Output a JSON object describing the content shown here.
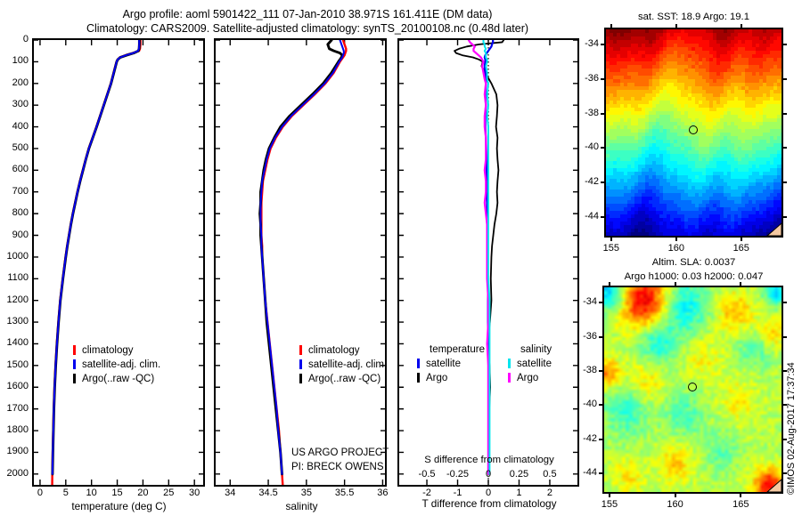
{
  "figure": {
    "title_line1": "Argo profile: aoml 5901422_111 07-Jan-2010 38.971S 161.411E (DM data)",
    "title_line2": "Climatology: CARS2009. Satellite-adjusted climatology: synTS_20100108.nc (0.48d later)",
    "watermark": "©IMOS 02-Aug-2017 17:37:34",
    "colors": {
      "climatology": "#ff0000",
      "satellite": "#0000ee",
      "argo": "#000000",
      "sat_salinity": "#00e5ee",
      "argo_salinity": "#ff00ff",
      "land": "#f5c9a2",
      "axis": "#000000"
    }
  },
  "chart_data": [
    {
      "id": "temperature_profile",
      "type": "line",
      "xlabel": "temperature (deg C)",
      "xlim": [
        -1.2,
        31.7
      ],
      "xticks": [
        0,
        5,
        10,
        15,
        20,
        25,
        30
      ],
      "depth_lim": [
        0,
        2050
      ],
      "depth_ticks": [
        0,
        100,
        200,
        300,
        400,
        500,
        600,
        700,
        800,
        900,
        1000,
        1100,
        1200,
        1300,
        1400,
        1500,
        1600,
        1700,
        1800,
        1900,
        2000
      ],
      "depths": [
        0,
        20,
        40,
        50,
        60,
        70,
        80,
        90,
        100,
        150,
        200,
        250,
        300,
        350,
        400,
        450,
        500,
        550,
        600,
        650,
        700,
        750,
        800,
        850,
        900,
        950,
        1000,
        1100,
        1200,
        1300,
        1400,
        1500,
        1600,
        1700,
        1800,
        1900,
        2000,
        2050
      ],
      "series": [
        {
          "name": "climatology",
          "color": "#ff0000",
          "lw": 2.4,
          "values": [
            19.5,
            19.5,
            19.42,
            19.25,
            18.0,
            16.6,
            15.5,
            15.05,
            14.85,
            14.3,
            13.75,
            13.05,
            12.35,
            11.65,
            10.95,
            10.2,
            9.45,
            8.85,
            8.3,
            7.75,
            7.25,
            6.8,
            6.35,
            5.95,
            5.6,
            5.25,
            4.95,
            4.4,
            3.9,
            3.55,
            3.25,
            3.0,
            2.8,
            2.65,
            2.55,
            2.45,
            2.38,
            2.36
          ]
        },
        {
          "name": "argo",
          "color": "#000000",
          "lw": 2.9,
          "values": [
            19.3,
            19.3,
            19.25,
            19.1,
            18.2,
            16.8,
            15.6,
            15.1,
            14.9,
            14.35,
            13.8,
            13.1,
            12.4,
            11.7,
            11.0,
            10.25,
            9.5,
            8.9,
            8.35,
            7.8,
            7.3,
            6.85,
            6.4,
            6.0,
            5.65,
            5.3,
            5.0,
            4.45,
            3.95,
            3.6,
            3.3,
            3.05,
            2.85,
            2.7,
            2.6,
            2.5,
            2.42
          ]
        },
        {
          "name": "satellite-adjusted",
          "color": "#0000ee",
          "lw": 2.0,
          "values": [
            19.25,
            19.28,
            19.22,
            19.05,
            18.1,
            16.7,
            15.55,
            15.08,
            14.88,
            14.33,
            13.78,
            13.08,
            12.38,
            11.68,
            10.98,
            10.23,
            9.48,
            8.88,
            8.33,
            7.78,
            7.28,
            6.83,
            6.38,
            5.98,
            5.63,
            5.28,
            4.98,
            4.43,
            3.93,
            3.58,
            3.28,
            3.03,
            2.83,
            2.68,
            2.58,
            2.48,
            2.4
          ]
        }
      ],
      "legend": [
        {
          "label": "climatology",
          "color": "#ff0000"
        },
        {
          "label": "satellite-adj. clim.",
          "color": "#0000ee"
        },
        {
          "label": "Argo(..raw -QC)",
          "color": "#000000"
        }
      ]
    },
    {
      "id": "salinity_profile",
      "type": "line",
      "xlabel": "salinity",
      "xlim": [
        33.81,
        36.03
      ],
      "xticks": [
        34,
        34.5,
        35,
        35.5,
        36
      ],
      "depth_lim": [
        0,
        2050
      ],
      "depths": [
        0,
        20,
        40,
        50,
        60,
        70,
        80,
        90,
        100,
        150,
        200,
        250,
        300,
        350,
        400,
        450,
        500,
        550,
        600,
        650,
        700,
        750,
        800,
        850,
        900,
        950,
        1000,
        1100,
        1200,
        1300,
        1400,
        1500,
        1600,
        1700,
        1800,
        1900,
        2000,
        2050
      ],
      "series": [
        {
          "name": "climatology",
          "color": "#ff0000",
          "lw": 2.4,
          "values": [
            35.48,
            35.5,
            35.52,
            35.52,
            35.51,
            35.5,
            35.48,
            35.46,
            35.44,
            35.36,
            35.25,
            35.11,
            34.96,
            34.81,
            34.69,
            34.6,
            34.53,
            34.49,
            34.46,
            34.43,
            34.42,
            34.41,
            34.41,
            34.41,
            34.41,
            34.42,
            34.42,
            34.44,
            34.46,
            34.49,
            34.52,
            34.55,
            34.58,
            34.61,
            34.64,
            34.66,
            34.68,
            34.69
          ]
        },
        {
          "name": "argo",
          "color": "#000000",
          "lw": 2.9,
          "values": [
            35.33,
            35.28,
            35.3,
            35.36,
            35.44,
            35.47,
            35.46,
            35.44,
            35.42,
            35.33,
            35.22,
            35.08,
            34.93,
            34.78,
            34.66,
            34.58,
            34.51,
            34.47,
            34.44,
            34.42,
            34.4,
            34.4,
            34.39,
            34.4,
            34.4,
            34.41,
            34.42,
            34.44,
            34.46,
            34.48,
            34.51,
            34.54,
            34.57,
            34.6,
            34.63,
            34.66,
            34.68
          ]
        },
        {
          "name": "satellite-adjusted",
          "color": "#0000ee",
          "lw": 2.0,
          "values": [
            35.44,
            35.46,
            35.48,
            35.49,
            35.49,
            35.48,
            35.47,
            35.45,
            35.43,
            35.35,
            35.24,
            35.1,
            34.95,
            34.8,
            34.68,
            34.59,
            34.52,
            34.48,
            34.45,
            34.42,
            34.41,
            34.4,
            34.4,
            34.4,
            34.41,
            34.41,
            34.42,
            34.44,
            34.46,
            34.49,
            34.52,
            34.55,
            34.58,
            34.61,
            34.63,
            34.66,
            34.68
          ]
        }
      ],
      "legend": [
        {
          "label": "climatology",
          "color": "#ff0000"
        },
        {
          "label": "satellite-adj. clim.",
          "color": "#0000ee"
        },
        {
          "label": "Argo(..raw -QC)",
          "color": "#000000"
        }
      ],
      "annotations": {
        "line1": "US ARGO PROJECT",
        "line2": "PI: BRECK OWENS"
      }
    },
    {
      "id": "difference_profile",
      "type": "line",
      "xlabel": "T difference from climatology",
      "xlim": [
        -2.9,
        2.9
      ],
      "xticks": [
        -2,
        -1,
        0,
        1,
        2
      ],
      "s_axis": {
        "label": "S difference from climatology",
        "ticks": [
          -0.5,
          -0.25,
          0,
          0.25,
          0.5
        ],
        "scale_to_T": 4
      },
      "depth_lim": [
        0,
        2050
      ],
      "zero_line": true,
      "depths": [
        0,
        10,
        20,
        30,
        40,
        50,
        60,
        70,
        80,
        90,
        100,
        120,
        150,
        180,
        200,
        250,
        300,
        350,
        400,
        450,
        500,
        550,
        600,
        650,
        700,
        750,
        800,
        850,
        900,
        950,
        1000,
        1100,
        1200,
        1300,
        1400,
        1500,
        1600,
        1700,
        1800,
        1900,
        2000
      ],
      "series": [
        {
          "name": "argo_T",
          "color": "#000000",
          "lw": 1.8,
          "scale": 1,
          "values": [
            0.5,
            0.45,
            -0.3,
            -0.7,
            -0.95,
            -1.1,
            -1.05,
            -0.85,
            -0.5,
            -0.3,
            -0.18,
            -0.22,
            -0.1,
            0.02,
            0.1,
            0.26,
            0.3,
            0.28,
            0.25,
            0.3,
            0.28,
            0.3,
            0.33,
            0.3,
            0.28,
            0.3,
            0.26,
            0.2,
            0.16,
            0.12,
            0.1,
            0.08,
            0.1,
            0.05,
            -0.02,
            0.04,
            0.06,
            0.03,
            0.02,
            0.01,
            0.0
          ]
        },
        {
          "name": "satellite_T",
          "color": "#0000ee",
          "lw": 2.2,
          "scale": 1,
          "values": [
            0.15,
            0.15,
            0.12,
            0.1,
            0.05,
            0.0,
            -0.05,
            -0.1,
            -0.12,
            -0.1,
            -0.1,
            -0.12,
            -0.1,
            -0.08,
            -0.08,
            -0.1,
            -0.08,
            -0.1,
            -0.1,
            -0.08,
            -0.07,
            -0.06,
            -0.05,
            -0.05,
            -0.04,
            -0.04,
            -0.03,
            -0.03,
            -0.02,
            -0.02,
            -0.02,
            -0.01,
            -0.01,
            -0.01,
            0.0,
            0.0,
            0.0,
            0.0,
            0.0,
            0.0,
            0.0
          ]
        },
        {
          "name": "argo_S",
          "color": "#ff00ff",
          "lw": 2.2,
          "scale": 4,
          "values": [
            -0.16,
            -0.15,
            -0.13,
            -0.11,
            -0.12,
            -0.12,
            -0.1,
            -0.08,
            -0.06,
            -0.05,
            -0.04,
            -0.05,
            -0.04,
            -0.03,
            -0.02,
            -0.03,
            -0.02,
            -0.03,
            -0.03,
            -0.02,
            -0.02,
            -0.02,
            -0.03,
            -0.02,
            -0.02,
            -0.03,
            -0.02,
            -0.01,
            -0.01,
            -0.01,
            -0.01,
            -0.01,
            0.0,
            0.0,
            -0.01,
            0.0,
            0.0,
            0.0,
            0.0,
            0.0,
            0.0
          ]
        },
        {
          "name": "satellite_S",
          "color": "#00e5ee",
          "lw": 2.0,
          "scale": 4,
          "values": [
            -0.04,
            -0.04,
            -0.03,
            -0.03,
            -0.02,
            -0.03,
            -0.02,
            -0.02,
            -0.02,
            -0.01,
            -0.01,
            -0.02,
            -0.01,
            -0.01,
            0.0,
            -0.01,
            0.0,
            -0.01,
            0.0,
            0.0,
            0.0,
            0.0,
            0.0,
            0.0,
            0.0,
            0.0,
            0.0,
            0.0,
            0.0,
            0.0,
            0.0,
            0.0,
            0.01,
            0.01,
            0.01,
            0.01,
            0.01,
            0.01,
            0.01,
            0.01,
            0.01
          ]
        }
      ],
      "legend_groups": [
        {
          "header": "temperature",
          "entries": [
            {
              "label": "satellite",
              "color": "#0000ee"
            },
            {
              "label": "Argo",
              "color": "#000000"
            }
          ]
        },
        {
          "header": "salinity",
          "entries": [
            {
              "label": "satellite",
              "color": "#00e5ee"
            },
            {
              "label": "Argo",
              "color": "#ff00ff"
            }
          ]
        }
      ]
    },
    {
      "id": "sst_map",
      "type": "heatmap",
      "title": "sat. SST: 18.9 Argo: 19.1",
      "lon_lim": [
        154.6,
        168.1
      ],
      "lat_lim": [
        -33.1,
        -45.1
      ],
      "xticks": [
        155,
        160,
        165
      ],
      "yticks": [
        -34,
        -36,
        -38,
        -40,
        -42,
        -44
      ],
      "marker": {
        "lon": 161.4,
        "lat": -39.0
      },
      "land_corner": true,
      "field": {
        "style": "banded",
        "warm_lat": -32.9,
        "cold_lat": -45.9,
        "tilt": -1.6,
        "wiggle": [
          [
            1.3,
            0.2,
            0.5
          ],
          [
            2.7,
            0.55,
            0.35
          ],
          [
            5.1,
            0.8,
            0.2
          ]
        ],
        "noise": 0.18,
        "cell": 4,
        "quant": 30
      }
    },
    {
      "id": "sla_map",
      "type": "heatmap",
      "title_line1": "Altim. SLA: 0.0037",
      "title_line2": "Argo h1000: 0.03 h2000: 0.047",
      "lon_lim": [
        154.6,
        168.1
      ],
      "lat_lim": [
        -33.1,
        -45.1
      ],
      "xticks": [
        155,
        160,
        165
      ],
      "yticks": [
        -34,
        -36,
        -38,
        -40,
        -42,
        -44
      ],
      "marker": {
        "lon": 161.4,
        "lat": -39.0
      },
      "land_corner": true,
      "field": {
        "style": "blobs",
        "base": 0.55,
        "noise": 0.05,
        "blobs": [
          [
            0.22,
            0.06,
            0.34,
            0.1
          ],
          [
            0.04,
            0.02,
            -0.25,
            0.07
          ],
          [
            0.45,
            0.09,
            -0.18,
            0.09
          ],
          [
            0.3,
            0.27,
            -0.16,
            0.08
          ],
          [
            0.74,
            0.12,
            0.15,
            0.07
          ],
          [
            0.97,
            0.02,
            -0.2,
            0.05
          ],
          [
            0.95,
            0.22,
            0.12,
            0.06
          ],
          [
            0.02,
            0.42,
            0.2,
            0.05
          ],
          [
            0.24,
            0.46,
            0.1,
            0.08
          ],
          [
            0.56,
            0.35,
            0.08,
            0.07
          ],
          [
            0.13,
            0.6,
            -0.12,
            0.09
          ],
          [
            0.45,
            0.62,
            -0.1,
            0.08
          ],
          [
            0.76,
            0.55,
            0.08,
            0.08
          ],
          [
            0.4,
            0.86,
            0.12,
            0.07
          ],
          [
            0.14,
            0.92,
            0.1,
            0.06
          ],
          [
            0.66,
            0.8,
            -0.08,
            0.07
          ],
          [
            0.93,
            0.97,
            0.32,
            0.06
          ],
          [
            0.85,
            0.3,
            -0.1,
            0.07
          ]
        ]
      }
    }
  ]
}
